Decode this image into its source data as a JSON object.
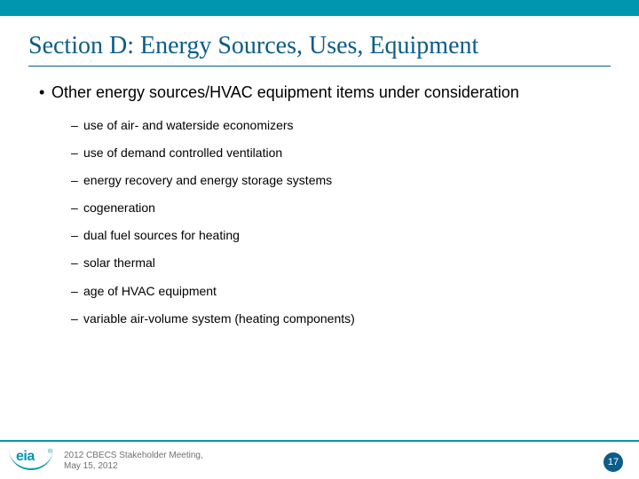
{
  "colors": {
    "accent_bar": "#0096b0",
    "title": "#0a5c8a",
    "body_text": "#000000",
    "footer_text": "#707070",
    "page_badge_bg": "#0a5c8a",
    "page_badge_text": "#ffffff",
    "background": "#ffffff"
  },
  "typography": {
    "title_family": "Times New Roman",
    "title_size_pt": 28,
    "body_family": "Arial",
    "level1_size_pt": 18,
    "level2_size_pt": 14,
    "footer_size_pt": 10
  },
  "title": "Section D: Energy Sources, Uses, Equipment",
  "level1": {
    "text": "Other energy sources/HVAC equipment items under consideration"
  },
  "level2_items": [
    "use of air- and waterside economizers",
    "use of demand controlled ventilation",
    "energy recovery and energy storage systems",
    "cogeneration",
    "dual fuel sources for heating",
    "solar thermal",
    "age of HVAC equipment",
    "variable air-volume system (heating components)"
  ],
  "footer": {
    "logo_text": "eia",
    "line1": "2012 CBECS Stakeholder Meeting,",
    "line2": "May 15, 2012",
    "page_number": "17"
  }
}
